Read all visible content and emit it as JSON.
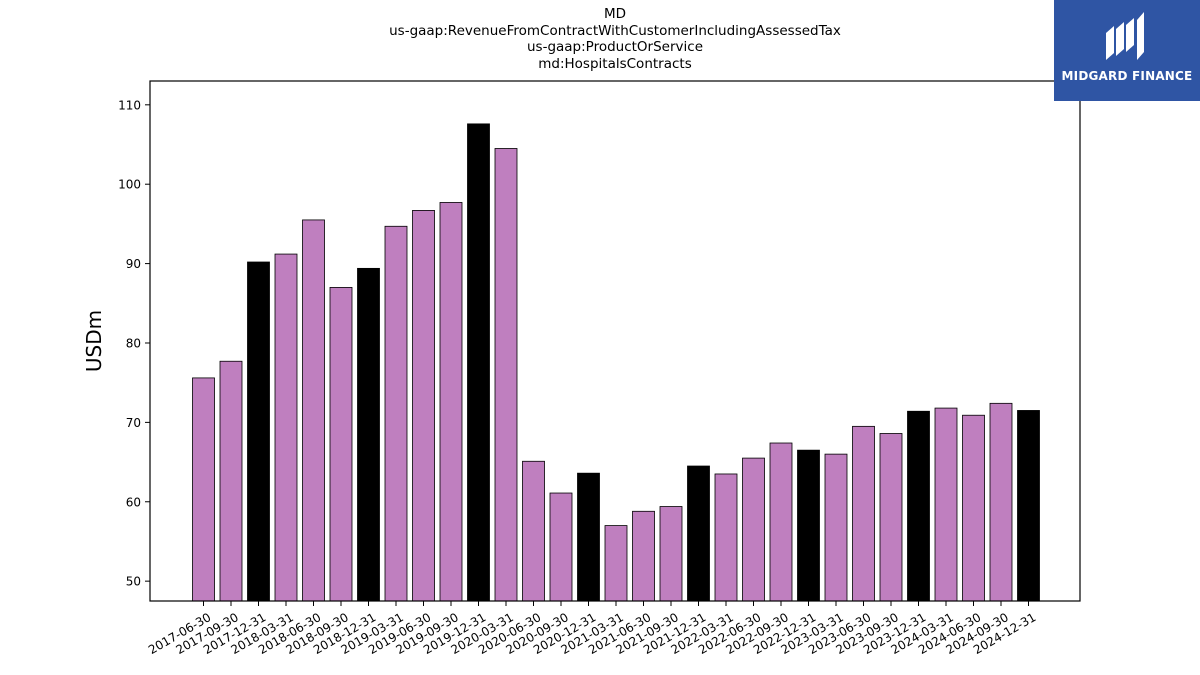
{
  "title_lines": [
    "MD",
    "us-gaap:RevenueFromContractWithCustomerIncludingAssessedTax",
    "us-gaap:ProductOrService",
    "md:HospitalsContracts"
  ],
  "logo": {
    "text": "MIDGARD FINANCE",
    "background": "#2f55a4",
    "foreground": "#ffffff"
  },
  "chart_data": {
    "type": "bar",
    "ylabel": "USDm",
    "xlabel": "",
    "ylim": [
      47.5,
      113
    ],
    "yticks": [
      50,
      60,
      70,
      80,
      90,
      100,
      110
    ],
    "grid": false,
    "colors": {
      "quarter": "#bf7fbf",
      "year_end": "#000000",
      "edge": "#000000"
    },
    "categories": [
      "2017-06-30",
      "2017-09-30",
      "2017-12-31",
      "2018-03-31",
      "2018-06-30",
      "2018-09-30",
      "2018-12-31",
      "2019-03-31",
      "2019-06-30",
      "2019-09-30",
      "2019-12-31",
      "2020-03-31",
      "2020-06-30",
      "2020-09-30",
      "2020-12-31",
      "2021-03-31",
      "2021-06-30",
      "2021-09-30",
      "2021-12-31",
      "2022-03-31",
      "2022-06-30",
      "2022-09-30",
      "2022-12-31",
      "2023-03-31",
      "2023-06-30",
      "2023-09-30",
      "2023-12-31",
      "2024-03-31",
      "2024-06-30",
      "2024-09-30",
      "2024-12-31"
    ],
    "values": [
      75.6,
      77.7,
      90.2,
      91.2,
      95.5,
      87.0,
      89.4,
      94.7,
      96.7,
      97.7,
      107.6,
      104.5,
      65.1,
      61.1,
      63.6,
      57.0,
      58.8,
      59.4,
      64.5,
      63.5,
      65.5,
      67.4,
      66.5,
      66.0,
      69.5,
      68.6,
      71.4,
      71.8,
      70.9,
      72.4,
      71.5
    ]
  }
}
